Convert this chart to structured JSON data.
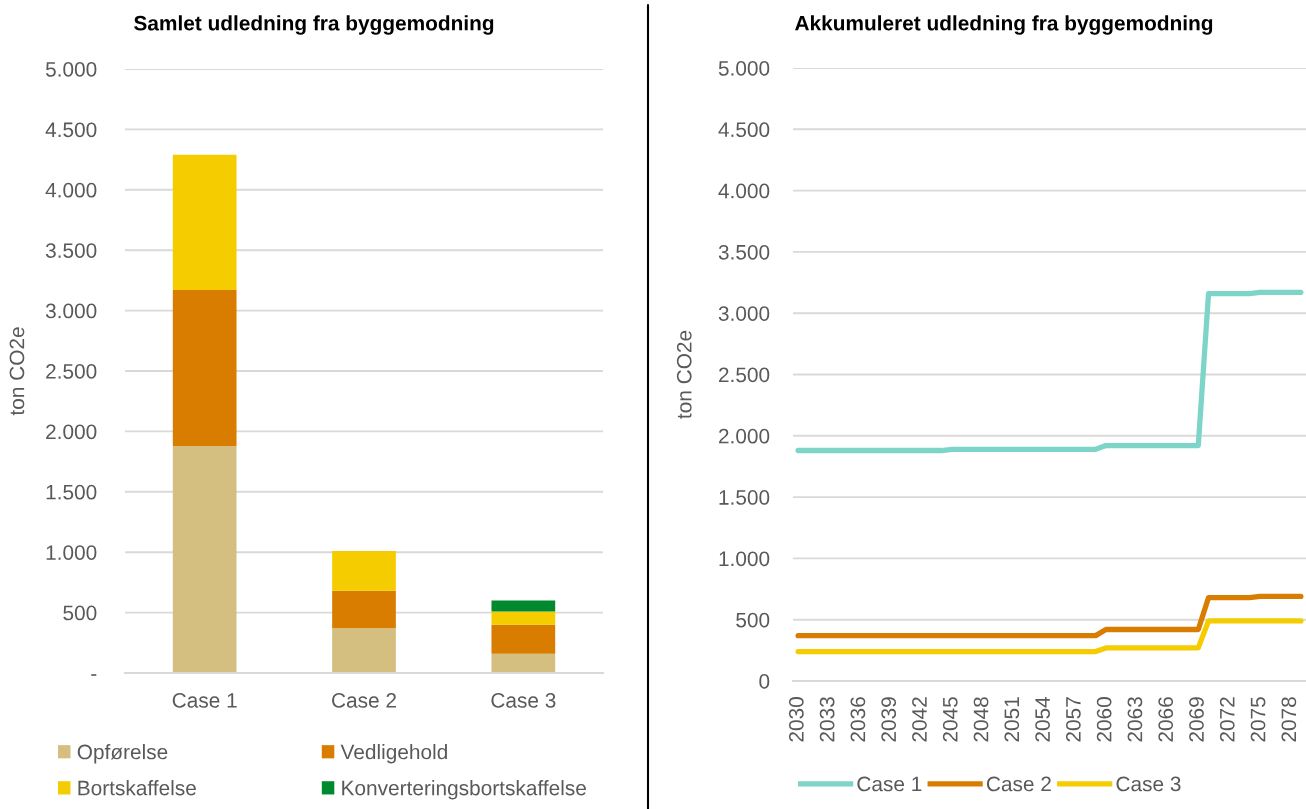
{
  "chart_data": [
    {
      "type": "bar",
      "title": "Samlet udledning fra byggemodning",
      "ylabel": "ton CO2e",
      "categories": [
        "Case 1",
        "Case 2",
        "Case 3"
      ],
      "stacked": true,
      "series": [
        {
          "name": "Opførelse",
          "color": "#d5bf80",
          "values": [
            1880,
            370,
            160
          ]
        },
        {
          "name": "Vedligehold",
          "color": "#d97d00",
          "values": [
            1290,
            310,
            240
          ]
        },
        {
          "name": "Bortskaffelse",
          "color": "#f5cc00",
          "values": [
            1120,
            330,
            110
          ]
        },
        {
          "name": "Konverteringsbortskaffelse",
          "color": "#00892f",
          "values": [
            null,
            null,
            90
          ]
        }
      ],
      "ylim": [
        0,
        5000
      ],
      "yticks": [
        {
          "value": 0,
          "label": "-"
        },
        500,
        {
          "value": 1000,
          "label": "1.000"
        },
        {
          "value": 1500,
          "label": "1.500"
        },
        {
          "value": 2000,
          "label": "2.000"
        },
        {
          "value": 2500,
          "label": "2.500"
        },
        {
          "value": 3000,
          "label": "3.000"
        },
        {
          "value": 3500,
          "label": "3.500"
        },
        {
          "value": 4000,
          "label": "4.000"
        },
        {
          "value": 4500,
          "label": "4.500"
        },
        {
          "value": 5000,
          "label": "5.000"
        }
      ],
      "grid": "y",
      "legend": "bottom"
    },
    {
      "type": "line",
      "title": "Akkumuleret udledning fra byggemodning",
      "ylabel": "ton CO2e",
      "categories": [
        "2030",
        null,
        null,
        "2033",
        null,
        null,
        "2036",
        null,
        null,
        "2039",
        null,
        null,
        "2042",
        null,
        null,
        "2045",
        null,
        null,
        "2048",
        null,
        null,
        "2051",
        null,
        null,
        "2054",
        null,
        null,
        "2057",
        null,
        null,
        "2060",
        null,
        null,
        "2063",
        null,
        null,
        "2066",
        null,
        null,
        "2069",
        null,
        null,
        "2072",
        null,
        null,
        "2075",
        null,
        null,
        "2078",
        null
      ],
      "series": [
        {
          "name": "Case 1",
          "color": "#7dd4c8",
          "values": [
            1880,
            1880,
            1880,
            1880,
            1880,
            1880,
            1880,
            1880,
            1880,
            1880,
            1880,
            1880,
            1880,
            1880,
            1880,
            1890,
            1890,
            1890,
            1890,
            1890,
            1890,
            1890,
            1890,
            1890,
            1890,
            1890,
            1890,
            1890,
            1890,
            1890,
            1920,
            1920,
            1920,
            1920,
            1920,
            1920,
            1920,
            1920,
            1920,
            1920,
            3160,
            3160,
            3160,
            3160,
            3160,
            3170,
            3170,
            3170,
            3170,
            3170
          ]
        },
        {
          "name": "Case 2",
          "color": "#d97d00",
          "values": [
            370,
            370,
            370,
            370,
            370,
            370,
            370,
            370,
            370,
            370,
            370,
            370,
            370,
            370,
            370,
            370,
            370,
            370,
            370,
            370,
            370,
            370,
            370,
            370,
            370,
            370,
            370,
            370,
            370,
            370,
            420,
            420,
            420,
            420,
            420,
            420,
            420,
            420,
            420,
            420,
            680,
            680,
            680,
            680,
            680,
            690,
            690,
            690,
            690,
            690
          ]
        },
        {
          "name": "Case 3",
          "color": "#f5cc00",
          "values": [
            240,
            240,
            240,
            240,
            240,
            240,
            240,
            240,
            240,
            240,
            240,
            240,
            240,
            240,
            240,
            240,
            240,
            240,
            240,
            240,
            240,
            240,
            240,
            240,
            240,
            240,
            240,
            240,
            240,
            240,
            270,
            270,
            270,
            270,
            270,
            270,
            270,
            270,
            270,
            270,
            490,
            490,
            490,
            490,
            490,
            490,
            490,
            490,
            490,
            490
          ]
        }
      ],
      "ylim": [
        0,
        5000
      ],
      "yticks": [
        0,
        500,
        {
          "value": 1000,
          "label": "1.000"
        },
        {
          "value": 1500,
          "label": "1.500"
        },
        {
          "value": 2000,
          "label": "2.000"
        },
        {
          "value": 2500,
          "label": "2.500"
        },
        {
          "value": 3000,
          "label": "3.000"
        },
        {
          "value": 3500,
          "label": "3.500"
        },
        {
          "value": 4000,
          "label": "4.000"
        },
        {
          "value": 4500,
          "label": "4.500"
        },
        {
          "value": 5000,
          "label": "5.000"
        }
      ],
      "grid": "y",
      "legend": "bottom"
    }
  ]
}
